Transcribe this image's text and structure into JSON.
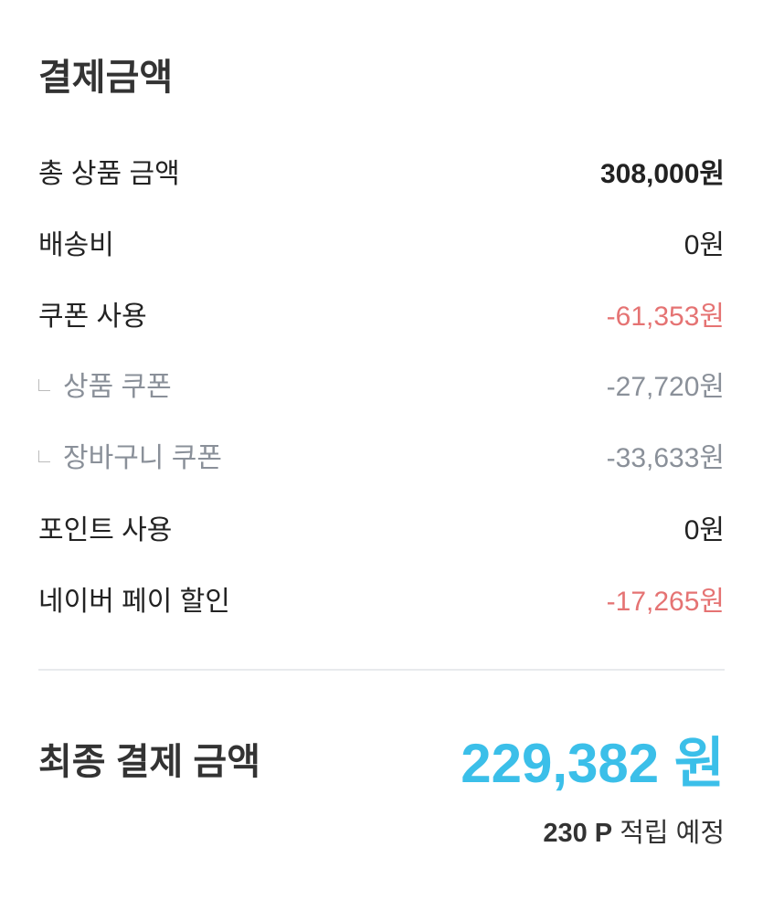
{
  "title": "결제금액",
  "rows": [
    {
      "label": "총 상품 금액",
      "value": "308,000원"
    },
    {
      "label": "배송비",
      "value": "0원"
    },
    {
      "label": "쿠폰 사용",
      "value": "-61,353원"
    },
    {
      "label": "상품 쿠폰",
      "value": "-27,720원"
    },
    {
      "label": "장바구니 쿠폰",
      "value": "-33,633원"
    },
    {
      "label": "포인트 사용",
      "value": "0원"
    },
    {
      "label": "네이버 페이 할인",
      "value": "-17,265원"
    }
  ],
  "final": {
    "label": "최종 결제 금액",
    "amount": "229,382 원"
  },
  "points": {
    "amount": "230 P",
    "text": "적립 예정"
  },
  "colors": {
    "accent": "#3bbfe9",
    "discount": "#e57373",
    "sub": "#8a9099"
  }
}
